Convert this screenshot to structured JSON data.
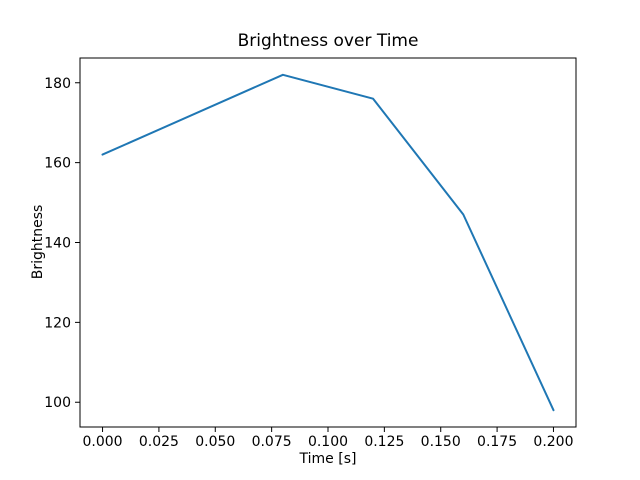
{
  "chart_data": {
    "type": "line",
    "title": "Brightness over Time",
    "xlabel": "Time [s]",
    "ylabel": "Brightness",
    "x": [
      0.0,
      0.08,
      0.12,
      0.16,
      0.2
    ],
    "y": [
      162,
      182,
      176,
      147,
      98
    ],
    "series_name": "brightness",
    "line_color": "#1f77b4",
    "axis_color": "#000000",
    "background_color": "#ffffff",
    "xlim": [
      -0.01,
      0.21
    ],
    "ylim": [
      93.8,
      186.2
    ],
    "x_ticks": [
      0.0,
      0.025,
      0.05,
      0.075,
      0.1,
      0.125,
      0.15,
      0.175,
      0.2
    ],
    "x_tick_labels": [
      "0.000",
      "0.025",
      "0.050",
      "0.075",
      "0.100",
      "0.125",
      "0.150",
      "0.175",
      "0.200"
    ],
    "y_ticks": [
      100,
      120,
      140,
      160,
      180
    ],
    "y_tick_labels": [
      "100",
      "120",
      "140",
      "160",
      "180"
    ],
    "grid": false,
    "legend_position": "none"
  }
}
